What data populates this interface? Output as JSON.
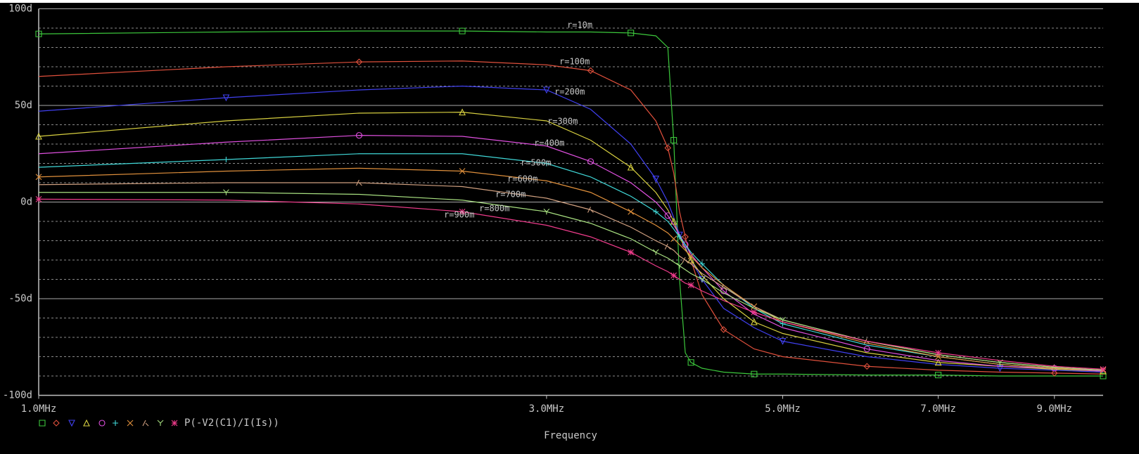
{
  "chart_data": {
    "type": "line",
    "x_label": "Frequency",
    "legend_label": "P(-V2(C1)/I(Is))",
    "xscale": "log",
    "xlim": [
      1,
      10
    ],
    "xticks": [
      {
        "value": 1,
        "label": "1.0MHz"
      },
      {
        "value": 3,
        "label": "3.0MHz"
      },
      {
        "value": 5,
        "label": "5.0MHz"
      },
      {
        "value": 7,
        "label": "7.0MHz"
      },
      {
        "value": 9,
        "label": "9.0MHz"
      }
    ],
    "ylim": [
      -100,
      100
    ],
    "yticks": [
      {
        "value": 100,
        "label": "100d"
      },
      {
        "value": 50,
        "label": "50d"
      },
      {
        "value": 0,
        "label": "0d"
      },
      {
        "value": -50,
        "label": "-50d"
      },
      {
        "value": -100,
        "label": "-100d"
      }
    ],
    "minor_yticks": [
      90,
      80,
      70,
      60,
      40,
      30,
      20,
      10,
      -10,
      -20,
      -30,
      -40,
      -60,
      -70,
      -80,
      -90
    ],
    "grid": true,
    "x": [
      1,
      1.5,
      2,
      2.5,
      3,
      3.3,
      3.6,
      3.8,
      3.9,
      3.95,
      4.0,
      4.05,
      4.1,
      4.2,
      4.4,
      4.7,
      5,
      6,
      7,
      8,
      9,
      10
    ],
    "series": [
      {
        "name": "r=10m",
        "color": "#3cc83c",
        "marker": "square",
        "values": [
          87,
          88,
          88.5,
          88.5,
          88,
          88,
          87.5,
          86,
          80,
          32,
          -40,
          -78,
          -83,
          -86,
          -88,
          -89,
          -89,
          -89.5,
          -89.5,
          -90,
          -90,
          -90
        ]
      },
      {
        "name": "r=100m",
        "color": "#e0503c",
        "marker": "diamond",
        "values": [
          65,
          70,
          72.5,
          73,
          71,
          68,
          58,
          42,
          28,
          15,
          -5,
          -18,
          -30,
          -48,
          -66,
          -76,
          -80,
          -85,
          -87,
          -88,
          -88.5,
          -89
        ]
      },
      {
        "name": "r=200m",
        "color": "#4040f0",
        "marker": "triangle-down",
        "values": [
          47,
          54,
          58,
          60,
          58,
          48,
          30,
          12,
          0,
          -8,
          -17,
          -23,
          -30,
          -40,
          -55,
          -65,
          -72,
          -80,
          -84,
          -86,
          -87,
          -88
        ]
      },
      {
        "name": "r=300m",
        "color": "#d8d040",
        "marker": "triangle-up",
        "values": [
          34,
          42,
          46,
          46.5,
          42,
          32,
          18,
          5,
          -4,
          -10,
          -18,
          -24,
          -30,
          -38,
          -50,
          -62,
          -68,
          -78,
          -83,
          -85,
          -86.5,
          -87.5
        ]
      },
      {
        "name": "r=400m",
        "color": "#e050e0",
        "marker": "circle",
        "values": [
          25,
          31,
          34.5,
          34,
          29,
          21,
          10,
          0,
          -7,
          -12,
          -17,
          -22,
          -27,
          -34,
          -46,
          -58,
          -65,
          -76,
          -82,
          -85,
          -86,
          -87.5
        ]
      },
      {
        "name": "r=500m",
        "color": "#40d8d8",
        "marker": "plus",
        "values": [
          18,
          22,
          25,
          25,
          20,
          13,
          3,
          -5,
          -10,
          -14,
          -18,
          -22,
          -26,
          -32,
          -43,
          -55,
          -63,
          -74,
          -80,
          -84,
          -86,
          -87
        ]
      },
      {
        "name": "r=600m",
        "color": "#e0903c",
        "marker": "x",
        "values": [
          13,
          16,
          17.5,
          16,
          11,
          5,
          -5,
          -12,
          -16,
          -19,
          -22,
          -25,
          -28,
          -34,
          -43,
          -54,
          -62,
          -73,
          -80,
          -84,
          -86,
          -87
        ]
      },
      {
        "name": "r=700m",
        "color": "#d0a080",
        "marker": "lambda",
        "values": [
          9,
          10,
          10,
          8,
          2,
          -4,
          -13,
          -20,
          -23,
          -25,
          -28,
          -30,
          -32,
          -37,
          -44,
          -54,
          -61,
          -72,
          -79,
          -83,
          -85.5,
          -87
        ]
      },
      {
        "name": "r=800m",
        "color": "#a8e080",
        "marker": "y",
        "values": [
          5,
          5,
          4,
          1,
          -5,
          -11,
          -19,
          -26,
          -29,
          -31,
          -33,
          -35,
          -37,
          -40,
          -47,
          -55,
          -61,
          -72,
          -79,
          -83,
          -85.5,
          -87
        ]
      },
      {
        "name": "r=900m",
        "color": "#f03c8c",
        "marker": "star",
        "values": [
          1.5,
          1,
          -1,
          -5,
          -12,
          -18,
          -26,
          -33,
          -36,
          -38,
          -40,
          -42,
          -43,
          -46,
          -51,
          -57,
          -62,
          -72,
          -78,
          -82,
          -85,
          -86.5
        ]
      }
    ]
  }
}
